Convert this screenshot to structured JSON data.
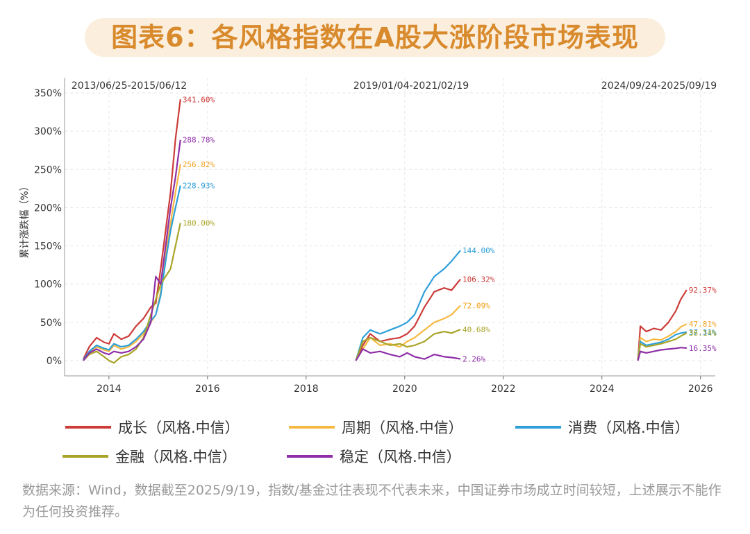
{
  "title": "图表6：各风格指数在A股大涨阶段市场表现",
  "chart_data": {
    "type": "line",
    "ylabel": "累计涨跌幅（%）",
    "yticks": [
      "0%",
      "50%",
      "100%",
      "150%",
      "200%",
      "250%",
      "300%",
      "350%"
    ],
    "ylim": [
      -20,
      370
    ],
    "xlim": [
      2013.1,
      2026.3
    ],
    "xticks": [
      "2014",
      "2016",
      "2018",
      "2020",
      "2022",
      "2024",
      "2026"
    ],
    "periods": [
      "2013/06/25-2015/06/12",
      "2019/01/04-2021/02/19",
      "2024/09/24-2025/09/19"
    ],
    "series": [
      {
        "name": "成长（风格.中信）",
        "color": "#cc3b38",
        "label_color": "#cc3b38",
        "segments": [
          {
            "x": [
              2013.48,
              2013.6,
              2013.75,
              2013.9,
              2014.0,
              2014.1,
              2014.25,
              2014.4,
              2014.55,
              2014.7,
              2014.85,
              2014.95,
              2015.05,
              2015.15,
              2015.25,
              2015.35,
              2015.45
            ],
            "y": [
              2,
              18,
              30,
              24,
              22,
              35,
              28,
              32,
              45,
              55,
              70,
              75,
              120,
              170,
              220,
              290,
              341.6
            ],
            "end_label": "341.60%"
          },
          {
            "x": [
              2019.01,
              2019.15,
              2019.3,
              2019.5,
              2019.7,
              2019.9,
              2020.05,
              2020.2,
              2020.4,
              2020.6,
              2020.8,
              2020.95,
              2021.13
            ],
            "y": [
              0,
              20,
              35,
              25,
              28,
              30,
              35,
              45,
              70,
              90,
              95,
              92,
              106.32
            ],
            "end_label": "106.32%"
          },
          {
            "x": [
              2024.73,
              2024.78,
              2024.9,
              2025.05,
              2025.2,
              2025.35,
              2025.5,
              2025.6,
              2025.72
            ],
            "y": [
              0,
              45,
              38,
              42,
              40,
              50,
              65,
              80,
              92.37
            ],
            "end_label": "92.37%"
          }
        ]
      },
      {
        "name": "周期（风格.中信）",
        "color": "#f5b942",
        "label_color": "#f2a11d",
        "segments": [
          {
            "x": [
              2013.48,
              2013.6,
              2013.75,
              2013.9,
              2014.0,
              2014.1,
              2014.25,
              2014.4,
              2014.55,
              2014.7,
              2014.85,
              2014.95,
              2015.05,
              2015.15,
              2015.25,
              2015.35,
              2015.45
            ],
            "y": [
              1,
              10,
              18,
              14,
              12,
              20,
              15,
              18,
              25,
              35,
              50,
              60,
              90,
              140,
              180,
              220,
              256.82
            ],
            "end_label": "256.82%"
          },
          {
            "x": [
              2019.01,
              2019.15,
              2019.3,
              2019.5,
              2019.7,
              2019.9,
              2020.05,
              2020.2,
              2020.4,
              2020.6,
              2020.8,
              2020.95,
              2021.13
            ],
            "y": [
              0,
              15,
              30,
              20,
              22,
              18,
              25,
              30,
              40,
              50,
              55,
              60,
              72.09
            ],
            "end_label": "72.09%"
          },
          {
            "x": [
              2024.73,
              2024.78,
              2024.9,
              2025.05,
              2025.2,
              2025.35,
              2025.5,
              2025.6,
              2025.72
            ],
            "y": [
              0,
              30,
              25,
              28,
              27,
              32,
              38,
              44,
              47.81
            ],
            "end_label": "47.81%"
          }
        ]
      },
      {
        "name": "消费（风格.中信）",
        "color": "#2e9fd8",
        "label_color": "#2e9fd8",
        "segments": [
          {
            "x": [
              2013.48,
              2013.6,
              2013.75,
              2013.9,
              2014.0,
              2014.1,
              2014.25,
              2014.4,
              2014.55,
              2014.7,
              2014.85,
              2014.95,
              2015.05,
              2015.15,
              2015.25,
              2015.35,
              2015.45
            ],
            "y": [
              1,
              12,
              20,
              16,
              14,
              22,
              18,
              20,
              28,
              38,
              52,
              60,
              85,
              130,
              170,
              200,
              228.93
            ],
            "end_label": "228.93%"
          },
          {
            "x": [
              2019.01,
              2019.15,
              2019.3,
              2019.5,
              2019.7,
              2019.9,
              2020.05,
              2020.2,
              2020.4,
              2020.6,
              2020.8,
              2020.95,
              2021.13
            ],
            "y": [
              0,
              30,
              40,
              35,
              40,
              45,
              50,
              60,
              90,
              110,
              120,
              130,
              144.0
            ],
            "end_label": "144.00%"
          },
          {
            "x": [
              2024.73,
              2024.78,
              2024.9,
              2025.05,
              2025.2,
              2025.35,
              2025.5,
              2025.6,
              2025.72
            ],
            "y": [
              0,
              25,
              20,
              22,
              24,
              28,
              34,
              36,
              37.31
            ],
            "end_label": "37.31%"
          }
        ]
      },
      {
        "name": "金融（风格.中信）",
        "color": "#a9a428",
        "label_color": "#a9a428",
        "segments": [
          {
            "x": [
              2013.48,
              2013.6,
              2013.75,
              2013.9,
              2014.0,
              2014.1,
              2014.25,
              2014.4,
              2014.55,
              2014.7,
              2014.85,
              2014.95,
              2015.05,
              2015.15,
              2015.25,
              2015.35,
              2015.45
            ],
            "y": [
              0,
              8,
              12,
              5,
              0,
              -3,
              5,
              8,
              15,
              30,
              60,
              80,
              100,
              110,
              120,
              150,
              180.0
            ],
            "end_label": "180.00%"
          },
          {
            "x": [
              2019.01,
              2019.15,
              2019.3,
              2019.5,
              2019.7,
              2019.9,
              2020.05,
              2020.2,
              2020.4,
              2020.6,
              2020.8,
              2020.95,
              2021.13
            ],
            "y": [
              0,
              25,
              30,
              25,
              20,
              22,
              18,
              20,
              25,
              35,
              38,
              36,
              40.68
            ],
            "end_label": "40.68%"
          },
          {
            "x": [
              2024.73,
              2024.78,
              2024.9,
              2025.05,
              2025.2,
              2025.35,
              2025.5,
              2025.6,
              2025.72
            ],
            "y": [
              0,
              22,
              18,
              20,
              22,
              25,
              28,
              32,
              36.14
            ],
            "end_label": "36.14%"
          }
        ]
      },
      {
        "name": "稳定（风格.中信）",
        "color": "#8e2fa7",
        "label_color": "#8e2fa7",
        "segments": [
          {
            "x": [
              2013.48,
              2013.6,
              2013.75,
              2013.9,
              2014.0,
              2014.1,
              2014.25,
              2014.4,
              2014.55,
              2014.7,
              2014.85,
              2014.95,
              2015.05,
              2015.15,
              2015.25,
              2015.35,
              2015.45
            ],
            "y": [
              0,
              10,
              15,
              10,
              8,
              12,
              10,
              12,
              18,
              28,
              50,
              110,
              100,
              150,
              200,
              240,
              288.78
            ],
            "end_label": "288.78%"
          },
          {
            "x": [
              2019.01,
              2019.15,
              2019.3,
              2019.5,
              2019.7,
              2019.9,
              2020.05,
              2020.2,
              2020.4,
              2020.6,
              2020.8,
              2020.95,
              2021.13
            ],
            "y": [
              0,
              15,
              10,
              12,
              8,
              5,
              10,
              5,
              2,
              8,
              5,
              4,
              2.26
            ],
            "end_label": "2.26%"
          },
          {
            "x": [
              2024.73,
              2024.78,
              2024.9,
              2025.05,
              2025.2,
              2025.35,
              2025.5,
              2025.6,
              2025.72
            ],
            "y": [
              0,
              12,
              10,
              12,
              14,
              15,
              16,
              17,
              16.35
            ],
            "end_label": "16.35%"
          }
        ]
      }
    ]
  },
  "footnote": "数据来源：Wind，数据截至2025/9/19，指数/基金过往表现不代表未来，中国证券市场成立时间较短，上述展示不能作为任何投资推荐。"
}
